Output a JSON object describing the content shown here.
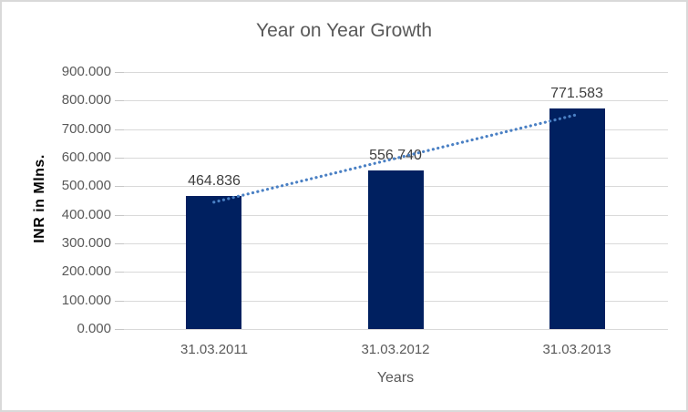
{
  "window": {
    "background": "#ffffff",
    "border_color": "#d9d9d9"
  },
  "chart_data": {
    "type": "bar",
    "title": "Year on Year Growth",
    "xlabel": "Years",
    "ylabel": "INR in Mlns.",
    "categories": [
      "31.03.2011",
      "31.03.2012",
      "31.03.2013"
    ],
    "values": [
      464.836,
      556.74,
      771.583
    ],
    "data_labels": [
      "464.836",
      "556.740",
      "771.583"
    ],
    "ylim": [
      0,
      900
    ],
    "ytick_step": 100,
    "ytick_labels": [
      "0.000",
      "100.000",
      "200.000",
      "300.000",
      "400.000",
      "500.000",
      "600.000",
      "700.000",
      "800.000",
      "900.000"
    ],
    "grid": true,
    "legend": false,
    "trendline": {
      "type": "linear",
      "style": "dotted"
    },
    "colors": {
      "bar": "#002060",
      "trendline": "#4a80c4",
      "gridline": "#d9d9d9",
      "tick_mark": "#c6c6c6",
      "title_text": "#595959",
      "tick_text": "#595959",
      "data_label_text": "#3f3f3f",
      "y_axis_title_text": "#000000"
    }
  }
}
